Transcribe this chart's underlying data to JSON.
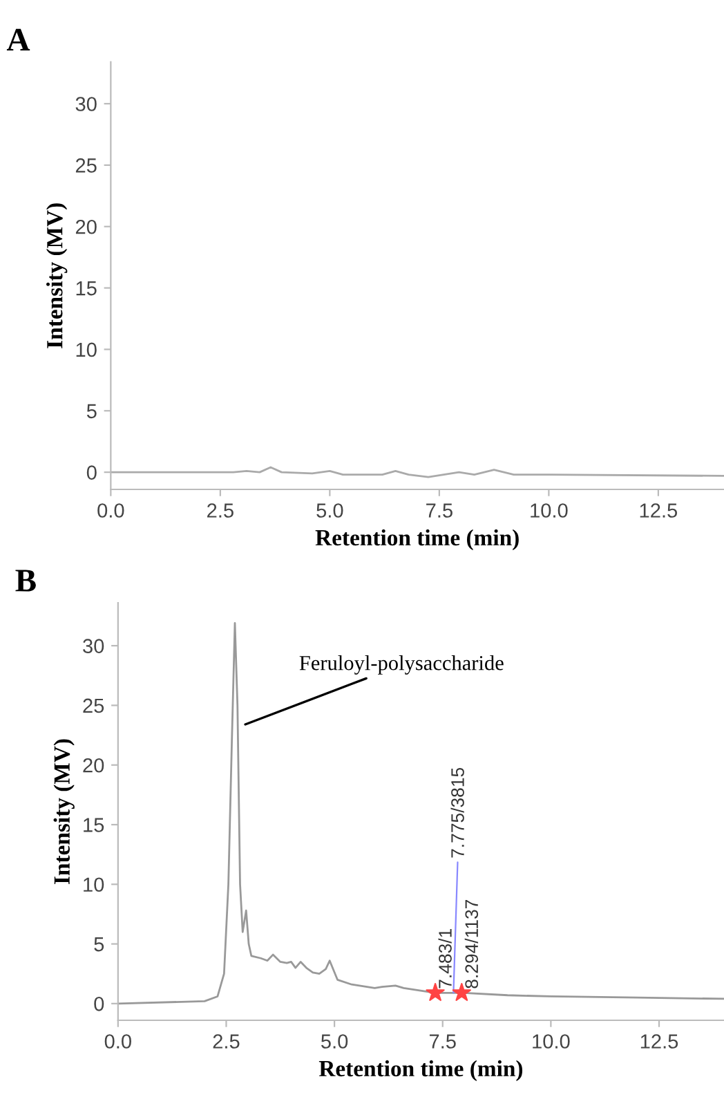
{
  "chart_data": [
    {
      "type": "line",
      "title": "A",
      "xlabel": "Retention time (min)",
      "ylabel": "Intensity (MV)",
      "xlim": [
        0,
        14
      ],
      "ylim": [
        -1.4,
        33.4
      ],
      "xticks": [
        {
          "value": 0,
          "label": "0.0"
        },
        {
          "value": 2.5,
          "label": "2.5"
        },
        {
          "value": 5,
          "label": "5.0"
        },
        {
          "value": 7.5,
          "label": "7.5"
        },
        {
          "value": 10,
          "label": "10.0"
        },
        {
          "value": 12.5,
          "label": "12.5"
        }
      ],
      "yticks": [
        0,
        5,
        10,
        15,
        20,
        25,
        30
      ],
      "grid": false,
      "legend": false,
      "series": [
        {
          "color": "#aaaaaa",
          "x": [
            0,
            2.8,
            3.1,
            3.4,
            3.65,
            3.9,
            4.6,
            5.0,
            5.3,
            6.2,
            6.5,
            6.8,
            7.25,
            7.6,
            7.95,
            8.3,
            8.75,
            9.2,
            10,
            14
          ],
          "values": [
            0,
            0,
            0.1,
            0,
            0.4,
            0,
            -0.1,
            0.1,
            -0.2,
            -0.2,
            0.1,
            -0.2,
            -0.4,
            -0.2,
            0,
            -0.2,
            0.2,
            -0.2,
            -0.2,
            -0.3
          ]
        }
      ]
    },
    {
      "type": "line",
      "title": "B",
      "xlabel": "Retention time (min)",
      "ylabel": "Intensity (MV)",
      "xlim": [
        0,
        14
      ],
      "ylim": [
        -1.4,
        33.6
      ],
      "xticks": [
        {
          "value": 0,
          "label": "0.0"
        },
        {
          "value": 2.5,
          "label": "2.5"
        },
        {
          "value": 5,
          "label": "5.0"
        },
        {
          "value": 7.5,
          "label": "7.5"
        },
        {
          "value": 10,
          "label": "10.0"
        },
        {
          "value": 12.5,
          "label": "12.5"
        }
      ],
      "yticks": [
        0,
        5,
        10,
        15,
        20,
        25,
        30
      ],
      "grid": false,
      "legend": false,
      "series": [
        {
          "color": "#999999",
          "x": [
            0,
            2.0,
            2.3,
            2.45,
            2.55,
            2.63,
            2.7,
            2.76,
            2.82,
            2.88,
            2.96,
            3.02,
            3.08,
            3.3,
            3.45,
            3.58,
            3.75,
            3.9,
            4.0,
            4.1,
            4.22,
            4.35,
            4.5,
            4.65,
            4.8,
            4.89,
            4.98,
            5.07,
            5.4,
            5.93,
            6.1,
            6.41,
            6.6,
            7.33,
            8.0,
            9,
            10,
            12,
            14
          ],
          "values": [
            0,
            0.2,
            0.6,
            2.5,
            10,
            22,
            31.9,
            25,
            10,
            6,
            7.8,
            5.0,
            4.0,
            3.8,
            3.6,
            4.1,
            3.5,
            3.4,
            3.5,
            3.0,
            3.5,
            3.0,
            2.6,
            2.5,
            2.9,
            3.6,
            2.8,
            2.0,
            1.6,
            1.3,
            1.4,
            1.5,
            1.3,
            0.9,
            0.9,
            0.7,
            0.6,
            0.5,
            0.4
          ]
        },
        {
          "type": "scatter",
          "color": "#ff4444",
          "marker": "star",
          "x": [
            7.33,
            7.94
          ],
          "values": [
            0.9,
            0.9
          ]
        }
      ],
      "annotations": [
        {
          "text": "Feruloyl-polysaccharide",
          "x": 2.94,
          "y": 23.4
        },
        {
          "text": "7.483/1",
          "x": 7.33,
          "y": 0.9
        },
        {
          "text": "7.775/3815",
          "x": 7.75,
          "y": 0.9
        },
        {
          "text": "8.294/1137",
          "x": 7.94,
          "y": 0.9
        }
      ]
    }
  ]
}
